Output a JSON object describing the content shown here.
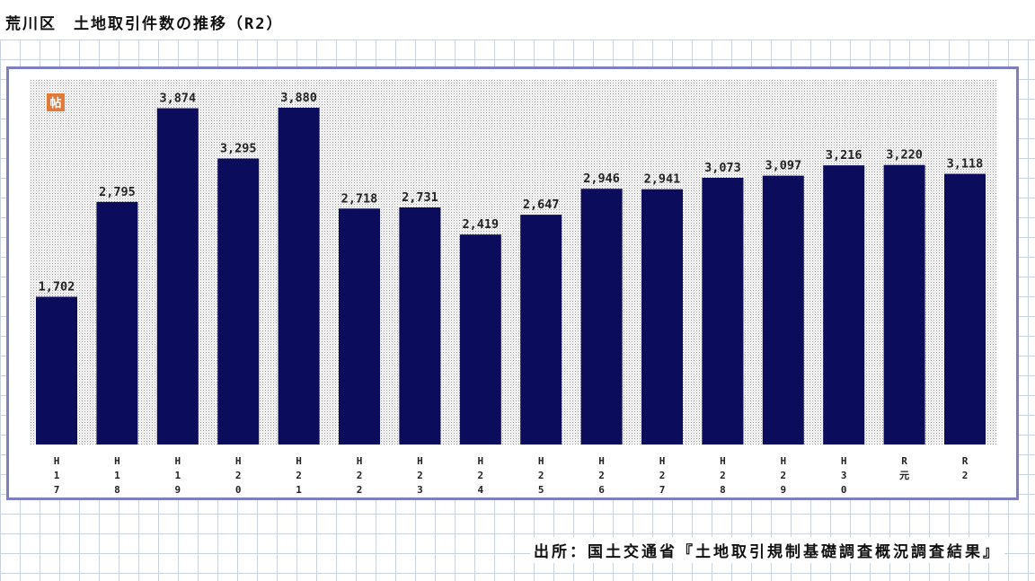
{
  "title": "荒川区　土地取引件数の推移（R2）",
  "source": "出所：国土交通省『土地取引規制基礎調査概況調査結果』",
  "logo_text": "帖",
  "colors": {
    "bar": "#0c0c5c",
    "frame": "#7e7fbf",
    "plot_dots": "#8f8f8f",
    "logo": "#e07a38"
  },
  "chart_data": {
    "type": "bar",
    "title": "荒川区　土地取引件数の推移（R2）",
    "xlabel": "",
    "ylabel": "",
    "ylim": [
      0,
      4200
    ],
    "grid": false,
    "legend": "none",
    "categories": [
      "H17",
      "H18",
      "H19",
      "H20",
      "H21",
      "H22",
      "H23",
      "H24",
      "H25",
      "H26",
      "H27",
      "H28",
      "H29",
      "H30",
      "R元",
      "R2"
    ],
    "tick_labels": [
      [
        "H",
        "1",
        "7"
      ],
      [
        "H",
        "1",
        "8"
      ],
      [
        "H",
        "1",
        "9"
      ],
      [
        "H",
        "2",
        "0"
      ],
      [
        "H",
        "2",
        "1"
      ],
      [
        "H",
        "2",
        "2"
      ],
      [
        "H",
        "2",
        "3"
      ],
      [
        "H",
        "2",
        "4"
      ],
      [
        "H",
        "2",
        "5"
      ],
      [
        "H",
        "2",
        "6"
      ],
      [
        "H",
        "2",
        "7"
      ],
      [
        "H",
        "2",
        "8"
      ],
      [
        "H",
        "2",
        "9"
      ],
      [
        "H",
        "3",
        "0"
      ],
      [
        "R",
        "元"
      ],
      [
        "R",
        "2"
      ]
    ],
    "values": [
      1702,
      2795,
      3874,
      3295,
      3880,
      2718,
      2731,
      2419,
      2647,
      2946,
      2941,
      3073,
      3097,
      3216,
      3220,
      3118
    ],
    "value_labels": [
      "1,702",
      "2,795",
      "3,874",
      "3,295",
      "3,880",
      "2,718",
      "2,731",
      "2,419",
      "2,647",
      "2,946",
      "2,941",
      "3,073",
      "3,097",
      "3,216",
      "3,220",
      "3,118"
    ]
  }
}
